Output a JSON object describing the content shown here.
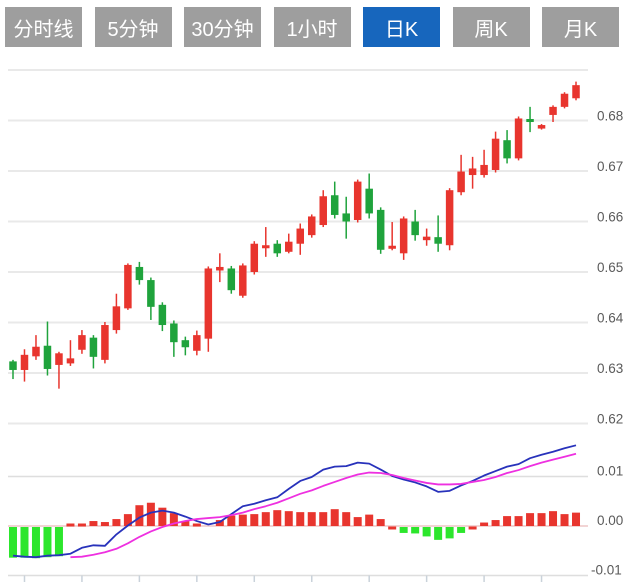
{
  "toolbar": {
    "tabs": [
      {
        "label": "分时线",
        "active": false
      },
      {
        "label": "5分钟",
        "active": false
      },
      {
        "label": "30分钟",
        "active": false
      },
      {
        "label": "1小时",
        "active": false
      },
      {
        "label": "日K",
        "active": true
      },
      {
        "label": "周K",
        "active": false
      },
      {
        "label": "月K",
        "active": false
      }
    ],
    "active_tab_color": "#1766bd",
    "inactive_tab_color": "#9e9e9e"
  },
  "colors": {
    "background": "#ffffff",
    "grid": "#e9e9e9",
    "axis_text": "#5a5a5a",
    "tick_mark": "#c9d2da"
  },
  "chart_data": [
    {
      "type": "candlestick",
      "title": "daily K-line (日K)",
      "legend": [],
      "grid": true,
      "up_color": "#e8352e",
      "down_color": "#1fa33c",
      "y_axis": {
        "grid_values": [
          0.69,
          0.68,
          0.67,
          0.66,
          0.65,
          0.64,
          0.63,
          0.62
        ],
        "tick_labels": [
          "0.68",
          "0.67",
          "0.66",
          "0.65",
          "0.64",
          "0.63",
          "0.62"
        ],
        "tick_values": [
          0.68,
          0.67,
          0.66,
          0.65,
          0.64,
          0.63,
          0.62
        ],
        "range": [
          0.617,
          0.691
        ]
      },
      "candles_format": [
        "open",
        "high",
        "low",
        "close"
      ],
      "candles": [
        [
          0.6323,
          0.6326,
          0.6288,
          0.6306
        ],
        [
          0.6306,
          0.6347,
          0.6283,
          0.6336
        ],
        [
          0.6333,
          0.6375,
          0.6326,
          0.6352
        ],
        [
          0.6354,
          0.6402,
          0.6295,
          0.6308
        ],
        [
          0.6316,
          0.6342,
          0.6269,
          0.6339
        ],
        [
          0.6319,
          0.6365,
          0.6314,
          0.6329
        ],
        [
          0.6346,
          0.6385,
          0.6338,
          0.6375
        ],
        [
          0.637,
          0.6375,
          0.6309,
          0.6332
        ],
        [
          0.6326,
          0.6401,
          0.6319,
          0.6395
        ],
        [
          0.6385,
          0.6457,
          0.6378,
          0.6432
        ],
        [
          0.6428,
          0.6517,
          0.6425,
          0.6514
        ],
        [
          0.651,
          0.652,
          0.6475,
          0.6484
        ],
        [
          0.6484,
          0.6489,
          0.6405,
          0.6431
        ],
        [
          0.6435,
          0.644,
          0.6383,
          0.6395
        ],
        [
          0.6398,
          0.6404,
          0.6332,
          0.6361
        ],
        [
          0.6365,
          0.6372,
          0.6335,
          0.6351
        ],
        [
          0.6344,
          0.6384,
          0.6335,
          0.6375
        ],
        [
          0.6368,
          0.6511,
          0.6342,
          0.6507
        ],
        [
          0.6503,
          0.6537,
          0.648,
          0.651
        ],
        [
          0.6507,
          0.6512,
          0.6457,
          0.6464
        ],
        [
          0.6453,
          0.6517,
          0.6449,
          0.6513
        ],
        [
          0.65,
          0.6561,
          0.6495,
          0.6556
        ],
        [
          0.6547,
          0.6589,
          0.653,
          0.6553
        ],
        [
          0.6556,
          0.6563,
          0.653,
          0.6537
        ],
        [
          0.654,
          0.6576,
          0.6537,
          0.656
        ],
        [
          0.6556,
          0.6596,
          0.6534,
          0.6586
        ],
        [
          0.6573,
          0.6614,
          0.6568,
          0.661
        ],
        [
          0.6593,
          0.6662,
          0.6589,
          0.665
        ],
        [
          0.6652,
          0.6679,
          0.6606,
          0.6613
        ],
        [
          0.6616,
          0.6649,
          0.6566,
          0.66
        ],
        [
          0.6603,
          0.6683,
          0.6598,
          0.6679
        ],
        [
          0.6665,
          0.6695,
          0.6606,
          0.6616
        ],
        [
          0.6623,
          0.6628,
          0.6536,
          0.6544
        ],
        [
          0.6546,
          0.6599,
          0.6543,
          0.6552
        ],
        [
          0.6537,
          0.661,
          0.6524,
          0.6606
        ],
        [
          0.66,
          0.6623,
          0.6562,
          0.6573
        ],
        [
          0.6563,
          0.6586,
          0.6552,
          0.657
        ],
        [
          0.6569,
          0.6612,
          0.654,
          0.6556
        ],
        [
          0.6553,
          0.6666,
          0.6543,
          0.6662
        ],
        [
          0.6658,
          0.6732,
          0.6652,
          0.6699
        ],
        [
          0.6692,
          0.6728,
          0.6665,
          0.6705
        ],
        [
          0.6692,
          0.6742,
          0.6687,
          0.6712
        ],
        [
          0.6702,
          0.6778,
          0.6697,
          0.6764
        ],
        [
          0.6761,
          0.6781,
          0.6715,
          0.6725
        ],
        [
          0.6725,
          0.6808,
          0.6721,
          0.6804
        ],
        [
          0.6803,
          0.6827,
          0.6777,
          0.6797
        ],
        [
          0.6784,
          0.6793,
          0.6782,
          0.6791
        ],
        [
          0.6811,
          0.683,
          0.6797,
          0.6827
        ],
        [
          0.6827,
          0.6856,
          0.6824,
          0.6853
        ],
        [
          0.6844,
          0.6877,
          0.684,
          0.687
        ]
      ]
    },
    {
      "type": "macd",
      "title": "MACD sub-indicator",
      "y_axis": {
        "tick_labels": [
          "0.01",
          "0.00",
          "-0.01"
        ],
        "tick_values": [
          0.01,
          0,
          -0.01
        ],
        "range": [
          -0.011,
          0.018
        ]
      },
      "dif_color": "#2832bb",
      "dea_color": "#ee30e0",
      "hist_up_color": "#e8352e",
      "hist_down_color": "#2ce62c",
      "zero_line_color": "#eec6c6",
      "histogram": [
        -0.0062,
        -0.0062,
        -0.0063,
        -0.0061,
        -0.0059,
        0.0004,
        0.0005,
        0.001,
        0.0008,
        0.0014,
        0.0024,
        0.0042,
        0.0047,
        0.0037,
        0.0026,
        0.001,
        0.0003,
        0.0,
        0.0012,
        0.0021,
        0.0023,
        0.0024,
        0.0028,
        0.0032,
        0.003,
        0.0028,
        0.0028,
        0.0028,
        0.0034,
        0.0028,
        0.0018,
        0.0023,
        0.0014,
        -0.0004,
        -0.0012,
        -0.0013,
        -0.0019,
        -0.0026,
        -0.0023,
        -0.0012,
        -0.0003,
        0.0007,
        0.0012,
        0.002,
        0.002,
        0.0026,
        0.0026,
        0.003,
        0.0024,
        0.0027
      ],
      "dif": [
        -0.006,
        -0.0062,
        -0.0063,
        -0.006,
        -0.0059,
        -0.0056,
        -0.0044,
        -0.0039,
        -0.004,
        -0.0017,
        0.0001,
        0.0017,
        0.0027,
        0.0031,
        0.0027,
        0.0019,
        0.001,
        0.0003,
        0.0008,
        0.0024,
        0.004,
        0.0045,
        0.0052,
        0.0058,
        0.0075,
        0.0091,
        0.0099,
        0.0114,
        0.012,
        0.0121,
        0.0128,
        0.0126,
        0.0114,
        0.0101,
        0.0094,
        0.0088,
        0.008,
        0.0069,
        0.0071,
        0.0082,
        0.0091,
        0.0102,
        0.0111,
        0.012,
        0.0125,
        0.0137,
        0.0144,
        0.015,
        0.0157,
        0.0163
      ],
      "dea": [
        null,
        null,
        null,
        null,
        null,
        -0.0063,
        -0.0062,
        -0.0058,
        -0.0053,
        -0.0046,
        -0.0035,
        -0.0022,
        -0.0011,
        -0.0002,
        0.0005,
        0.001,
        0.0014,
        0.0016,
        0.0018,
        0.0022,
        0.0027,
        0.0034,
        0.004,
        0.0047,
        0.0056,
        0.0065,
        0.0072,
        0.0081,
        0.0089,
        0.0097,
        0.0104,
        0.0108,
        0.0107,
        0.0103,
        0.0097,
        0.0092,
        0.0087,
        0.0084,
        0.0084,
        0.0085,
        0.0089,
        0.0093,
        0.0099,
        0.0107,
        0.0113,
        0.0121,
        0.0128,
        0.0134,
        0.014,
        0.0146
      ]
    }
  ]
}
